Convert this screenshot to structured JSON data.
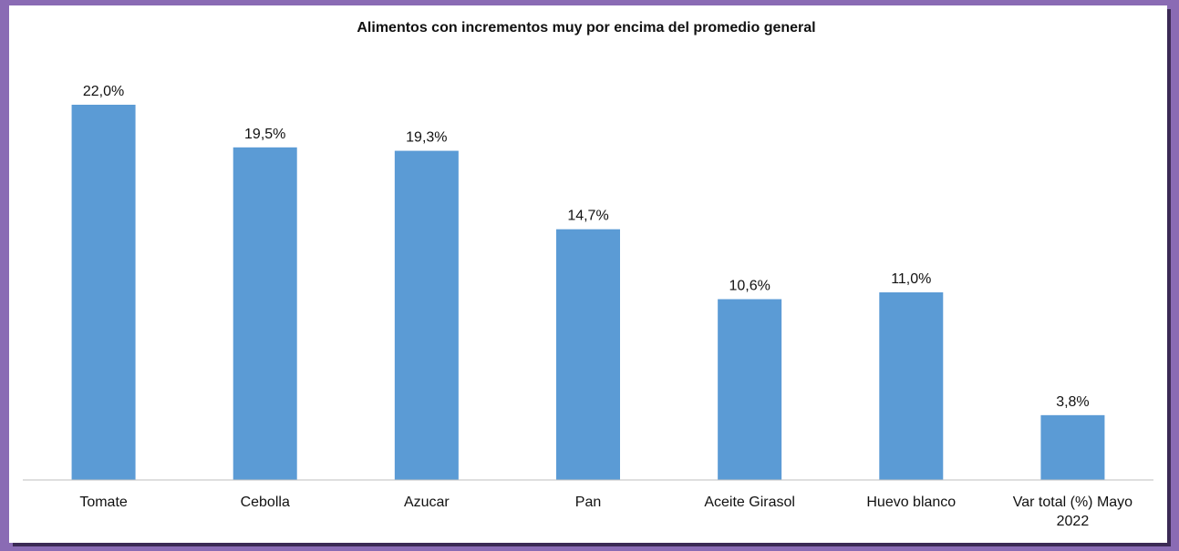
{
  "chart_data": {
    "type": "bar",
    "title": "Alimentos con incrementos muy por encima del promedio general",
    "categories": [
      [
        "Tomate"
      ],
      [
        "Cebolla"
      ],
      [
        "Azucar"
      ],
      [
        "Pan"
      ],
      [
        "Aceite Girasol"
      ],
      [
        "Huevo blanco"
      ],
      [
        "Var total (%) Mayo",
        "2022"
      ]
    ],
    "values": [
      22.0,
      19.5,
      19.3,
      14.7,
      10.6,
      11.0,
      3.8
    ],
    "data_labels": [
      "22,0%",
      "19,5%",
      "19,3%",
      "14,7%",
      "10,6%",
      "11,0%",
      "3,8%"
    ],
    "ylim": [
      0,
      22
    ],
    "grid": false,
    "bar_color": "#5b9bd5",
    "xlabel": "",
    "ylabel": ""
  }
}
